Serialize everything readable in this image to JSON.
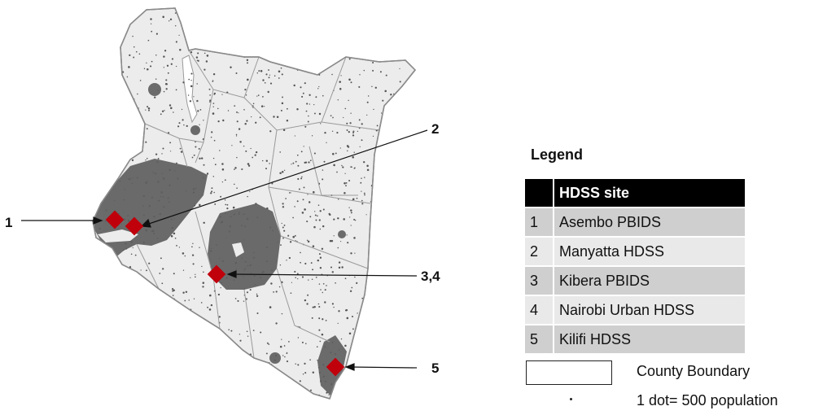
{
  "map": {
    "colors": {
      "land": "#ececec",
      "boundary": "#9a9a9a",
      "outline": "#8a8a8a",
      "dense_population": "#5f5f5f",
      "sparse_dots": "#555555",
      "site_marker": "#c0000b",
      "arrow": "#111111"
    },
    "callouts": [
      {
        "label": "1",
        "sites": [
          "Asembo PBIDS"
        ]
      },
      {
        "label": "2",
        "sites": [
          "Manyatta HDSS"
        ]
      },
      {
        "label": "3,4",
        "sites": [
          "Kibera PBIDS",
          "Nairobi Urban HDSS"
        ]
      },
      {
        "label": "5",
        "sites": [
          "Kilifi HDSS"
        ]
      }
    ]
  },
  "legend": {
    "title": "Legend",
    "table_header": "HDSS site",
    "sites": [
      {
        "num": "1",
        "name": "Asembo PBIDS"
      },
      {
        "num": "2",
        "name": "Manyatta HDSS"
      },
      {
        "num": "3",
        "name": "Kibera PBIDS"
      },
      {
        "num": "4",
        "name": "Nairobi Urban HDSS"
      },
      {
        "num": "5",
        "name": "Kilifi HDSS"
      }
    ],
    "county_boundary_label": "County Boundary",
    "dot_label": "1 dot= 500 population"
  }
}
